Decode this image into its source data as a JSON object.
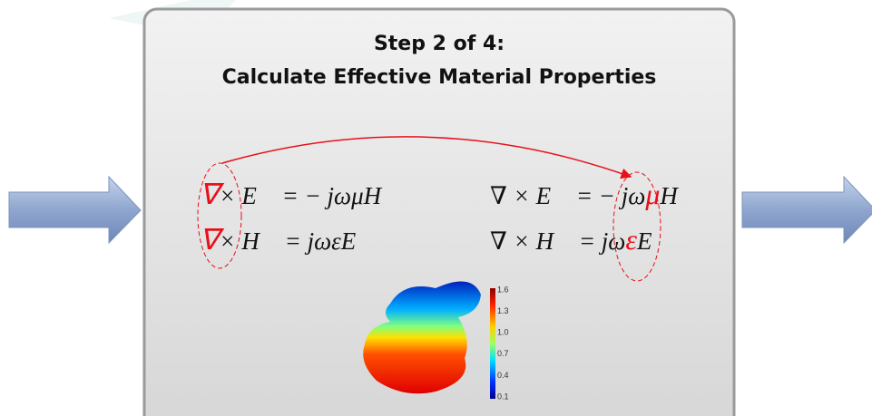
{
  "header": {
    "title": [
      "Step 2 of 4:",
      "Calculate Effective Material Properties"
    ]
  },
  "equations": {
    "left": [
      [
        {
          "text": "∇",
          "color": "#e8101a"
        },
        {
          "text": "× E⃗ = − jωμH⃗"
        }
      ],
      [
        {
          "text": "∇",
          "color": "#e8101a"
        },
        {
          "text": "× H⃗ = jωεE⃗"
        }
      ]
    ],
    "right": [
      [
        {
          "text": "∇ × E⃗ = − jω"
        },
        {
          "text": "μ",
          "color": "#e8101a"
        },
        {
          "text": "H⃗"
        }
      ],
      [
        {
          "text": "∇ × H⃗ = jω"
        },
        {
          "text": "ε",
          "color": "#e8101a"
        },
        {
          "text": "E⃗"
        }
      ]
    ]
  },
  "colorbar": {
    "labels": [
      "1.6",
      "1.3",
      "1.0",
      "0.7",
      "0.4",
      "0.1"
    ]
  }
}
